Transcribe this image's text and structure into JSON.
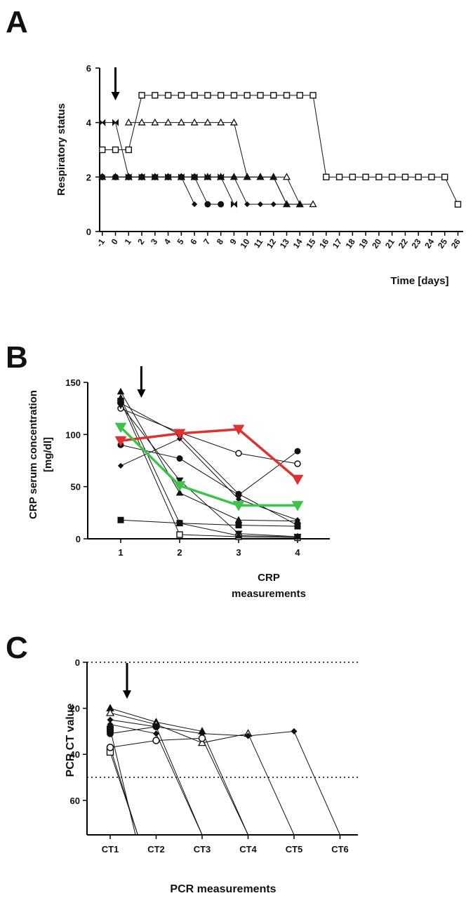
{
  "figure": {
    "panel_letters": [
      "A",
      "B",
      "C"
    ]
  },
  "chart_data": [
    {
      "panel": "A",
      "type": "line",
      "ylabel": "Respiratory status",
      "xlabel": "Time [days]",
      "ylim": [
        0,
        6
      ],
      "yticks": [
        0,
        2,
        4,
        6
      ],
      "xticks": [
        "-1",
        "0",
        "1",
        "2",
        "3",
        "4",
        "5",
        "6",
        "7",
        "8",
        "9",
        "10",
        "11",
        "12",
        "13",
        "14",
        "15",
        "16",
        "17",
        "18",
        "19",
        "20",
        "21",
        "22",
        "23",
        "24",
        "25",
        "26"
      ],
      "arrow_at_x": 0,
      "series": [
        {
          "marker": "open-square",
          "x": [
            -1,
            0,
            1,
            2,
            3,
            4,
            5,
            6,
            7,
            8,
            9,
            10,
            11,
            12,
            13,
            14,
            15,
            16,
            17,
            18,
            19,
            20,
            21,
            22,
            23,
            24,
            25,
            26
          ],
          "y": [
            3,
            3,
            3,
            5,
            5,
            5,
            5,
            5,
            5,
            5,
            5,
            5,
            5,
            5,
            5,
            5,
            5,
            2,
            2,
            2,
            2,
            2,
            2,
            2,
            2,
            2,
            2,
            1
          ]
        },
        {
          "marker": "open-triangle",
          "x": [
            1,
            2,
            3,
            4,
            5,
            6,
            7,
            8,
            9,
            10,
            11,
            12,
            13,
            14,
            15
          ],
          "y": [
            4,
            4,
            4,
            4,
            4,
            4,
            4,
            4,
            4,
            2,
            2,
            2,
            2,
            1,
            1
          ]
        },
        {
          "marker": "open-triangle",
          "x": [
            -1,
            0,
            1,
            2,
            3,
            4,
            5,
            6,
            7,
            8,
            9,
            10,
            11,
            12,
            13,
            14
          ],
          "y": [
            2,
            2,
            2,
            2,
            2,
            2,
            2,
            2,
            2,
            2,
            2,
            2,
            2,
            2,
            1,
            1
          ]
        },
        {
          "marker": "bowtie",
          "x": [
            -1,
            0,
            1,
            2,
            3,
            4,
            5,
            6,
            7,
            8,
            9
          ],
          "y": [
            4,
            4,
            2,
            2,
            2,
            2,
            2,
            2,
            2,
            2,
            1
          ]
        },
        {
          "marker": "filled-circle",
          "x": [
            -1,
            0,
            1,
            2,
            3,
            4,
            5,
            6,
            7,
            8
          ],
          "y": [
            2,
            2,
            2,
            2,
            2,
            2,
            2,
            2,
            1,
            1
          ]
        },
        {
          "marker": "filled-diamond",
          "x": [
            -1,
            0,
            1,
            2,
            3,
            4,
            5,
            6
          ],
          "y": [
            2,
            2,
            2,
            2,
            2,
            2,
            2,
            1
          ]
        },
        {
          "marker": "filled-triangle",
          "x": [
            -1,
            0,
            1,
            2,
            3,
            4,
            5,
            6,
            7,
            8,
            9,
            10,
            11,
            12,
            13,
            14
          ],
          "y": [
            2,
            2,
            2,
            2,
            2,
            2,
            2,
            2,
            2,
            2,
            2,
            2,
            2,
            2,
            1,
            1
          ]
        },
        {
          "marker": "filled-diamond",
          "x": [
            -1,
            0,
            1,
            2,
            3,
            4,
            5,
            6,
            7,
            8,
            9,
            10,
            11,
            12,
            13
          ],
          "y": [
            2,
            2,
            2,
            2,
            2,
            2,
            2,
            2,
            2,
            2,
            2,
            1,
            1,
            1,
            1
          ]
        }
      ]
    },
    {
      "panel": "B",
      "type": "line",
      "ylabel": "CRP  serum concentration [mg/dl]",
      "ylabel_lines": [
        "CRP  serum concentration",
        "[mg/dl]"
      ],
      "xlabel_lines": [
        "CRP",
        "measurements"
      ],
      "ylim": [
        0,
        150
      ],
      "yticks": [
        0,
        50,
        100,
        150
      ],
      "categories": [
        "1",
        "2",
        "3",
        "4"
      ],
      "arrow_at_x": 1.35,
      "series": [
        {
          "marker": "filled-triangle",
          "color": "#111111",
          "values": [
            141,
            44,
            18,
            17
          ],
          "bold": false
        },
        {
          "marker": "open-square",
          "color": "#111111",
          "values": [
            132,
            4,
            2,
            1
          ],
          "bold": false
        },
        {
          "marker": "filled-circle",
          "color": "#111111",
          "values": [
            130,
            100,
            43,
            13
          ],
          "bold": false
        },
        {
          "marker": "open-circle",
          "color": "#111111",
          "values": [
            125,
            102,
            82,
            72
          ],
          "bold": false
        },
        {
          "marker": "filled-down-triangle",
          "color": "#111111",
          "values": [
            128,
            56,
            5,
            2
          ],
          "bold": false
        },
        {
          "marker": "filled-square",
          "color": "#111111",
          "values": [
            18,
            15,
            13,
            12
          ],
          "bold": false
        },
        {
          "marker": "filled-circle",
          "color": "#111111",
          "values": [
            90,
            77,
            42,
            84
          ],
          "bold": false
        },
        {
          "marker": "filled-diamond",
          "color": "#111111",
          "values": [
            70,
            96,
            38,
            18
          ],
          "bold": false
        },
        {
          "marker": "filled-triangle",
          "color": "#111111",
          "values": [
            135,
            15,
            3,
            2
          ],
          "bold": false
        },
        {
          "marker": "filled-down-triangle",
          "color": "#e03030",
          "values": [
            94,
            101,
            105,
            57
          ],
          "bold": true
        },
        {
          "marker": "filled-down-triangle",
          "color": "#3cc44a",
          "values": [
            107,
            51,
            32,
            32
          ],
          "bold": true
        }
      ]
    },
    {
      "panel": "C",
      "type": "line",
      "ylabel": "PCR CT value",
      "xlabel": "PCR measurements",
      "ylim": [
        75,
        0
      ],
      "yticks": [
        0,
        20,
        40,
        60
      ],
      "categories": [
        "CT1",
        "CT2",
        "CT3",
        "CT4",
        "CT5",
        "CT6"
      ],
      "reference_lines": [
        0,
        50
      ],
      "arrow_at_x": 1.8,
      "series": [
        {
          "marker": "filled-triangle",
          "x": [
            1,
            2,
            3,
            4
          ],
          "y": [
            20,
            26,
            30,
            75
          ]
        },
        {
          "marker": "open-triangle",
          "x": [
            1,
            2,
            3,
            4,
            5
          ],
          "y": [
            22,
            27,
            35,
            31,
            75
          ]
        },
        {
          "marker": "filled-diamond",
          "x": [
            1,
            2,
            3,
            4,
            5,
            6
          ],
          "y": [
            25,
            28,
            31,
            32,
            30,
            75
          ]
        },
        {
          "marker": "open-circle",
          "x": [
            1,
            2,
            3,
            4
          ],
          "y": [
            37,
            34,
            33,
            75
          ]
        },
        {
          "marker": "filled-diamond",
          "x": [
            1,
            2,
            3
          ],
          "y": [
            27,
            31,
            75
          ]
        },
        {
          "marker": "filled-circle",
          "x": [
            1,
            2,
            3
          ],
          "y": [
            31,
            28,
            75
          ]
        },
        {
          "marker": "open-square",
          "x": [
            1,
            1.6
          ],
          "y": [
            39,
            75
          ]
        },
        {
          "marker": "filled-square",
          "x": [
            1,
            1.55
          ],
          "y": [
            29,
            75
          ]
        },
        {
          "marker": "open-circle",
          "x": [
            1,
            1.6
          ],
          "y": [
            37,
            75
          ]
        }
      ]
    }
  ]
}
